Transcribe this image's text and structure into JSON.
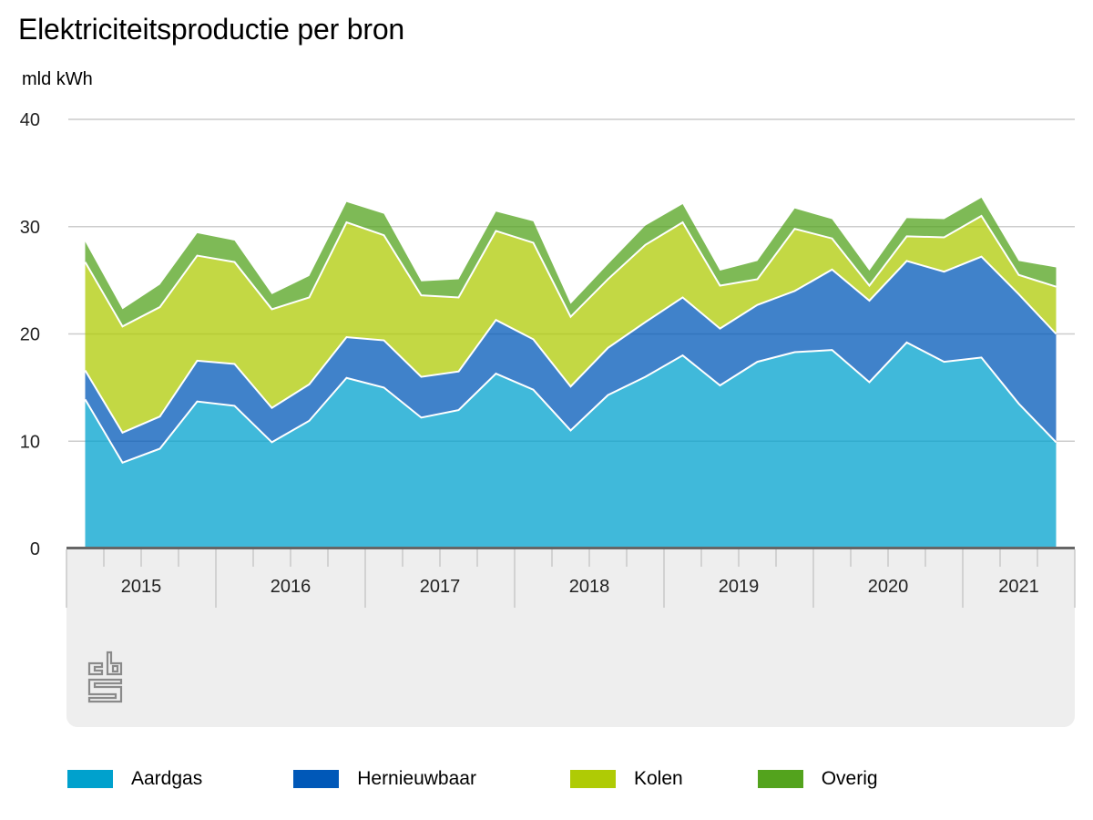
{
  "chart_data": {
    "type": "area",
    "stacked": true,
    "title": "Elektriciteitsproductie per bron",
    "ylabel": "mld kWh",
    "xlabel": "",
    "ylim": [
      0,
      40
    ],
    "yticks": [
      0,
      10,
      20,
      30,
      40
    ],
    "grid": true,
    "legend_position": "bottom",
    "x_periods": [
      "2015 Q1",
      "2015 Q2",
      "2015 Q3",
      "2015 Q4",
      "2016 Q1",
      "2016 Q2",
      "2016 Q3",
      "2016 Q4",
      "2017 Q1",
      "2017 Q2",
      "2017 Q3",
      "2017 Q4",
      "2018 Q1",
      "2018 Q2",
      "2018 Q3",
      "2018 Q4",
      "2019 Q1",
      "2019 Q2",
      "2019 Q3",
      "2019 Q4",
      "2020 Q1",
      "2020 Q2",
      "2020 Q3",
      "2020 Q4",
      "2021 Q1",
      "2021 Q2",
      "2021 Q3"
    ],
    "year_labels": [
      "2015",
      "2016",
      "2017",
      "2018",
      "2019",
      "2020",
      "2021"
    ],
    "year_quarter_counts": [
      4,
      4,
      4,
      4,
      4,
      4,
      3
    ],
    "series": [
      {
        "name": "Aardgas",
        "color": "#00a1cd",
        "values": [
          13.9,
          8.0,
          9.3,
          13.7,
          13.3,
          9.9,
          11.9,
          15.9,
          15.0,
          12.2,
          12.9,
          16.3,
          14.8,
          11.0,
          14.3,
          16.0,
          18.0,
          15.2,
          17.4,
          18.3,
          18.5,
          15.5,
          19.2,
          17.4,
          17.8,
          13.5,
          9.9
        ]
      },
      {
        "name": "Hernieuwbaar",
        "color": "#0058b8",
        "values": [
          2.7,
          2.8,
          3.0,
          3.8,
          3.9,
          3.2,
          3.4,
          3.8,
          4.4,
          3.8,
          3.6,
          5.0,
          4.7,
          4.1,
          4.4,
          5.1,
          5.4,
          5.3,
          5.3,
          5.7,
          7.5,
          7.6,
          7.6,
          8.4,
          9.4,
          10.2,
          10.1
        ]
      },
      {
        "name": "Kolen",
        "color": "#afcb05",
        "values": [
          10.1,
          9.9,
          10.2,
          9.8,
          9.5,
          9.2,
          8.1,
          10.7,
          9.8,
          7.6,
          6.9,
          8.3,
          9.0,
          6.5,
          6.4,
          7.2,
          7.0,
          4.0,
          2.4,
          5.8,
          2.9,
          1.4,
          2.3,
          3.2,
          3.8,
          1.8,
          4.4
        ]
      },
      {
        "name": "Overig",
        "color": "#53a31d",
        "values": [
          1.9,
          1.6,
          2.1,
          2.1,
          2.0,
          1.4,
          2.0,
          1.9,
          2.0,
          1.3,
          1.7,
          1.8,
          2.0,
          1.2,
          1.4,
          1.8,
          1.7,
          1.4,
          1.7,
          1.9,
          1.8,
          1.4,
          1.7,
          1.7,
          1.7,
          1.3,
          1.8
        ]
      }
    ]
  },
  "legend": [
    {
      "label": "Aardgas",
      "color": "#00a1cd"
    },
    {
      "label": "Hernieuwbaar",
      "color": "#0058b8"
    },
    {
      "label": "Kolen",
      "color": "#afcb05"
    },
    {
      "label": "Overig",
      "color": "#53a31d"
    }
  ],
  "branding": {
    "logo": "cbs-logo-icon"
  }
}
